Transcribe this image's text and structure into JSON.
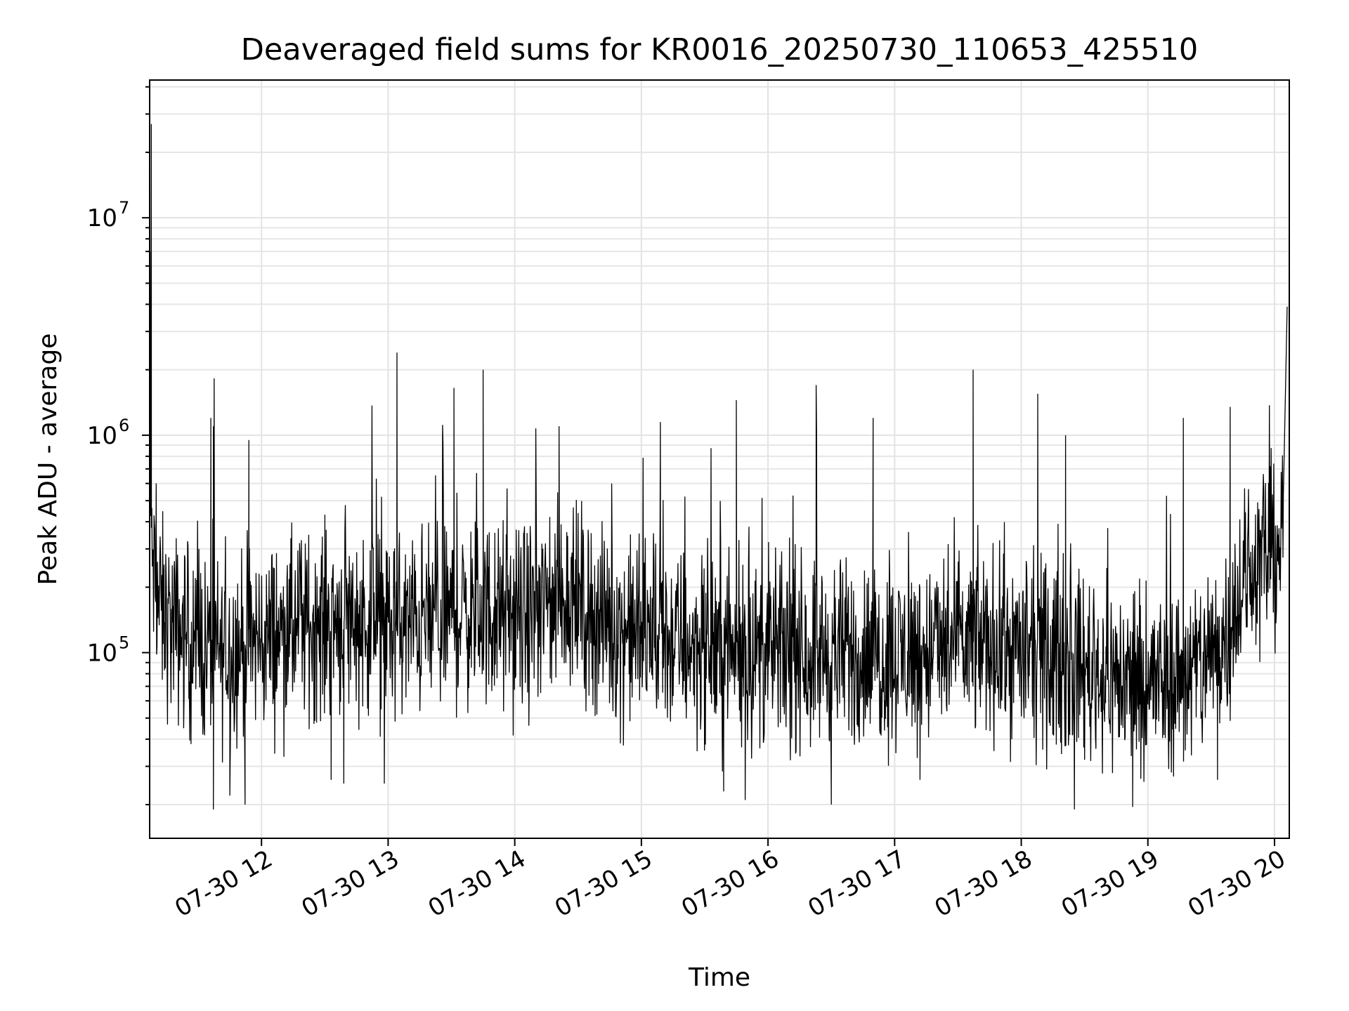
{
  "chart_data": {
    "type": "line",
    "title": "Deaveraged field sums for KR0016_20250730_110653_425510",
    "xlabel": "Time",
    "ylabel": "Peak ADU - average",
    "yscale": "log",
    "xlim": [
      "2025-07-30T11:07",
      "2025-07-30T20:07"
    ],
    "ylim": [
      14000,
      43000000
    ],
    "grid": true,
    "line_color": "#000000",
    "x_ticks": [
      "07-30 12",
      "07-30 13",
      "07-30 14",
      "07-30 15",
      "07-30 16",
      "07-30 17",
      "07-30 18",
      "07-30 19",
      "07-30 20"
    ],
    "x_tick_hours": [
      12,
      13,
      14,
      15,
      16,
      17,
      18,
      19,
      20
    ],
    "y_ticks": [
      {
        "value": 100000,
        "base": "10",
        "exp": "5"
      },
      {
        "value": 1000000,
        "base": "10",
        "exp": "6"
      },
      {
        "value": 10000000,
        "base": "10",
        "exp": "7"
      }
    ],
    "series": [
      {
        "x_hours": [
          11.12,
          11.15,
          11.2,
          11.25,
          11.3,
          11.35,
          11.4,
          11.45,
          11.5,
          11.55,
          11.6,
          11.65,
          11.7,
          11.8,
          11.9,
          12.0,
          12.1,
          12.2,
          12.3,
          12.4,
          12.5,
          12.6,
          12.7,
          12.8,
          12.9,
          13.0,
          13.1,
          13.2,
          13.3,
          13.4,
          13.5,
          13.6,
          13.7,
          13.8,
          13.9,
          14.0,
          14.1,
          14.2,
          14.3,
          14.4,
          14.5,
          14.6,
          14.7,
          14.8,
          14.9,
          15.0,
          15.2,
          15.4,
          15.6,
          15.8,
          16.0,
          16.2,
          16.4,
          16.6,
          16.8,
          17.0,
          17.2,
          17.4,
          17.6,
          17.8,
          18.0,
          18.2,
          18.4,
          18.6,
          18.8,
          19.0,
          19.2,
          19.4,
          19.5,
          19.6,
          19.7,
          19.8,
          19.9,
          20.0,
          20.07
        ],
        "baseline": [
          450000,
          220000,
          160000,
          140000,
          130000,
          125000,
          120000,
          115000,
          110000,
          105000,
          100000,
          100000,
          100000,
          105000,
          110000,
          115000,
          120000,
          125000,
          130000,
          135000,
          140000,
          145000,
          145000,
          140000,
          135000,
          130000,
          130000,
          135000,
          140000,
          145000,
          150000,
          150000,
          150000,
          148000,
          145000,
          140000,
          145000,
          155000,
          175000,
          190000,
          170000,
          150000,
          140000,
          130000,
          125000,
          120000,
          115000,
          110000,
          105000,
          100000,
          100000,
          100000,
          100000,
          98000,
          96000,
          96000,
          100000,
          105000,
          110000,
          110000,
          100000,
          92000,
          88000,
          82000,
          75000,
          72000,
          75000,
          85000,
          95000,
          120000,
          170000,
          230000,
          280000,
          300000,
          360000
        ],
        "spikes": [
          {
            "x_hour": 11.13,
            "y": 27000000
          },
          {
            "x_hour": 11.12,
            "y": 7000000
          },
          {
            "x_hour": 11.6,
            "y": 1200000
          },
          {
            "x_hour": 11.62,
            "y": 1100000
          },
          {
            "x_hour": 11.9,
            "y": 950000
          },
          {
            "x_hour": 13.07,
            "y": 2400000
          },
          {
            "x_hour": 13.52,
            "y": 1650000
          },
          {
            "x_hour": 13.75,
            "y": 2000000
          },
          {
            "x_hour": 14.35,
            "y": 1100000
          },
          {
            "x_hour": 15.15,
            "y": 1150000
          },
          {
            "x_hour": 15.75,
            "y": 1450000
          },
          {
            "x_hour": 16.38,
            "y": 1700000
          },
          {
            "x_hour": 16.83,
            "y": 1200000
          },
          {
            "x_hour": 17.62,
            "y": 2000000
          },
          {
            "x_hour": 18.13,
            "y": 1550000
          },
          {
            "x_hour": 18.35,
            "y": 1000000
          },
          {
            "x_hour": 19.28,
            "y": 1200000
          },
          {
            "x_hour": 19.65,
            "y": 1350000
          },
          {
            "x_hour": 20.1,
            "y": 3900000
          }
        ],
        "dips": [
          {
            "x_hour": 11.62,
            "y": 19000
          },
          {
            "x_hour": 11.75,
            "y": 22000
          },
          {
            "x_hour": 11.87,
            "y": 20000
          },
          {
            "x_hour": 12.55,
            "y": 26000
          },
          {
            "x_hour": 12.65,
            "y": 25000
          },
          {
            "x_hour": 12.97,
            "y": 25000
          },
          {
            "x_hour": 15.65,
            "y": 23000
          },
          {
            "x_hour": 15.82,
            "y": 21000
          },
          {
            "x_hour": 16.5,
            "y": 20000
          },
          {
            "x_hour": 17.2,
            "y": 26000
          },
          {
            "x_hour": 18.42,
            "y": 19000
          },
          {
            "x_hour": 18.88,
            "y": 19500
          },
          {
            "x_hour": 19.55,
            "y": 26000
          }
        ]
      }
    ]
  }
}
